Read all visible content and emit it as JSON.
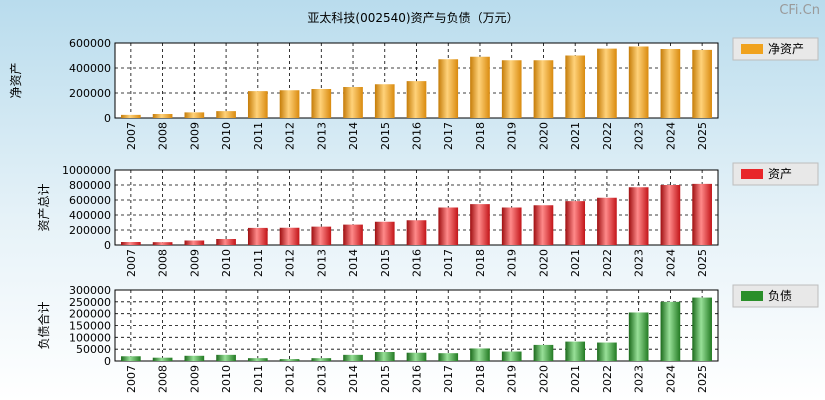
{
  "title": "亚太科技(002540)资产与负债（万元）",
  "watermark": "CFi.Cn",
  "chart_data": [
    {
      "type": "bar",
      "ylabel": "净资产",
      "legend": "净资产",
      "legend_position": "right",
      "grid": true,
      "color": "#f0a21e",
      "categories": [
        "2007",
        "2008",
        "2009",
        "2010",
        "2011",
        "2012",
        "2013",
        "2014",
        "2015",
        "2016",
        "2017",
        "2018",
        "2019",
        "2020",
        "2021",
        "2022",
        "2023",
        "2024",
        "2025"
      ],
      "values": [
        25000,
        32000,
        45000,
        55000,
        215000,
        222000,
        232000,
        248000,
        270000,
        295000,
        470000,
        490000,
        462000,
        462000,
        500000,
        555000,
        572000,
        552000,
        545000
      ],
      "ylim": [
        0,
        600000
      ],
      "yticks": [
        0,
        200000,
        400000,
        600000
      ]
    },
    {
      "type": "bar",
      "ylabel": "资产总计",
      "legend": "资产",
      "legend_position": "right",
      "grid": true,
      "color": "#e8262a",
      "categories": [
        "2007",
        "2008",
        "2009",
        "2010",
        "2011",
        "2012",
        "2013",
        "2014",
        "2015",
        "2016",
        "2017",
        "2018",
        "2019",
        "2020",
        "2021",
        "2022",
        "2023",
        "2024",
        "2025"
      ],
      "values": [
        40000,
        38000,
        60000,
        80000,
        228000,
        230000,
        245000,
        272000,
        310000,
        330000,
        500000,
        545000,
        500000,
        530000,
        585000,
        630000,
        770000,
        800000,
        815000
      ],
      "ylim": [
        0,
        1000000
      ],
      "yticks": [
        0,
        200000,
        400000,
        600000,
        800000,
        1000000
      ]
    },
    {
      "type": "bar",
      "ylabel": "负债合计",
      "legend": "负债",
      "legend_position": "right",
      "grid": true,
      "color": "#2a8f2a",
      "categories": [
        "2007",
        "2008",
        "2009",
        "2010",
        "2011",
        "2012",
        "2013",
        "2014",
        "2015",
        "2016",
        "2017",
        "2018",
        "2019",
        "2020",
        "2021",
        "2022",
        "2023",
        "2024",
        "2025"
      ],
      "values": [
        20000,
        14000,
        22000,
        26000,
        12000,
        8000,
        12000,
        26000,
        38000,
        35000,
        33000,
        53000,
        40000,
        68000,
        82000,
        78000,
        205000,
        250000,
        268000
      ],
      "ylim": [
        0,
        300000
      ],
      "yticks": [
        0,
        50000,
        100000,
        150000,
        200000,
        250000,
        300000
      ]
    }
  ]
}
